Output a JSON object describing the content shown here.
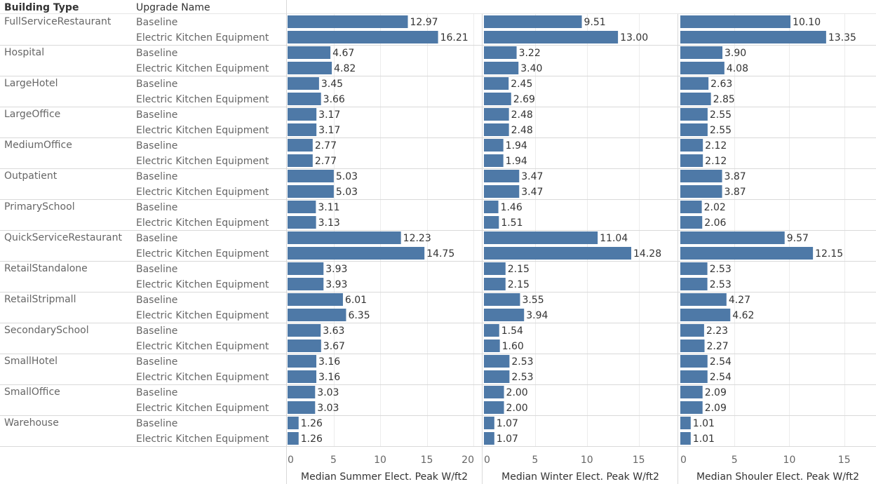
{
  "headers": {
    "building_type": "Building Type",
    "upgrade_name": "Upgrade Name"
  },
  "chart_data": {
    "type": "bar",
    "orientation": "horizontal",
    "panel_style": "small-multiples",
    "grid": true,
    "legend": "none",
    "bar_color": "#4e79a7",
    "building_types": [
      "FullServiceRestaurant",
      "Hospital",
      "LargeHotel",
      "LargeOffice",
      "MediumOffice",
      "Outpatient",
      "PrimarySchool",
      "QuickServiceRestaurant",
      "RetailStandalone",
      "RetailStripmall",
      "SecondarySchool",
      "SmallHotel",
      "SmallOffice",
      "Warehouse"
    ],
    "upgrades": [
      "Baseline",
      "Electric Kitchen Equipment"
    ],
    "panels": [
      {
        "xlabel": "Median Summer Elect. Peak W/ft2",
        "xlim": [
          0,
          20
        ],
        "ticks": [
          0,
          5,
          10,
          15,
          20
        ],
        "values": [
          [
            12.97,
            16.21
          ],
          [
            4.67,
            4.82
          ],
          [
            3.45,
            3.66
          ],
          [
            3.17,
            3.17
          ],
          [
            2.77,
            2.77
          ],
          [
            5.03,
            5.03
          ],
          [
            3.11,
            3.13
          ],
          [
            12.23,
            14.75
          ],
          [
            3.93,
            3.93
          ],
          [
            6.01,
            6.35
          ],
          [
            3.63,
            3.67
          ],
          [
            3.16,
            3.16
          ],
          [
            3.03,
            3.03
          ],
          [
            1.26,
            1.26
          ]
        ]
      },
      {
        "xlabel": "Median Winter Elect. Peak W/ft2",
        "xlim": [
          0,
          18
        ],
        "ticks": [
          0,
          5,
          10,
          15
        ],
        "values": [
          [
            9.51,
            13.0
          ],
          [
            3.22,
            3.4
          ],
          [
            2.45,
            2.69
          ],
          [
            2.48,
            2.48
          ],
          [
            1.94,
            1.94
          ],
          [
            3.47,
            3.47
          ],
          [
            1.46,
            1.51
          ],
          [
            11.04,
            14.28
          ],
          [
            2.15,
            2.15
          ],
          [
            3.55,
            3.94
          ],
          [
            1.54,
            1.6
          ],
          [
            2.53,
            2.53
          ],
          [
            2.0,
            2.0
          ],
          [
            1.07,
            1.07
          ]
        ]
      },
      {
        "xlabel": "Median Shouler Elect. Peak W/ft2",
        "xlim": [
          0,
          17
        ],
        "ticks": [
          0,
          5,
          10,
          15
        ],
        "values": [
          [
            10.1,
            13.35
          ],
          [
            3.9,
            4.08
          ],
          [
            2.63,
            2.85
          ],
          [
            2.55,
            2.55
          ],
          [
            2.12,
            2.12
          ],
          [
            3.87,
            3.87
          ],
          [
            2.02,
            2.06
          ],
          [
            9.57,
            12.15
          ],
          [
            2.53,
            2.53
          ],
          [
            4.27,
            4.62
          ],
          [
            2.23,
            2.27
          ],
          [
            2.54,
            2.54
          ],
          [
            2.09,
            2.09
          ],
          [
            1.01,
            1.01
          ]
        ]
      }
    ]
  }
}
